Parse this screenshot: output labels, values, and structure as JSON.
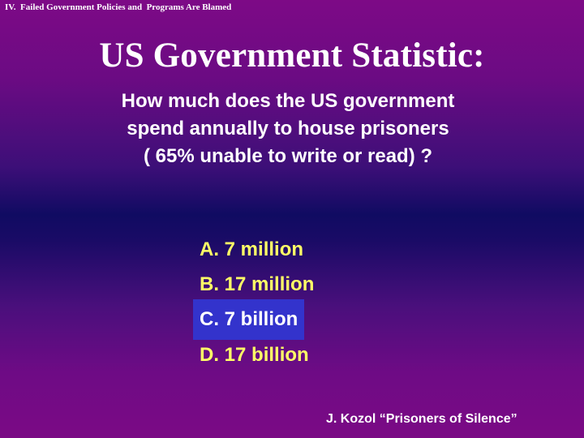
{
  "slide": {
    "section_header": "IV.  Failed Government Policies and  Programs Are Blamed",
    "title": "US Government Statistic:",
    "question_lines": [
      "How much does the US government",
      "spend annually to house prisoners",
      "( 65% unable to write or read) ?"
    ],
    "options": [
      {
        "label": "A. 7 million",
        "selected": false
      },
      {
        "label": "B. 17 million",
        "selected": false
      },
      {
        "label": "C. 7 billion",
        "selected": true
      },
      {
        "label": "D. 17 billion",
        "selected": false
      }
    ],
    "citation": "J. Kozol “Prisoners of Silence”"
  },
  "colors": {
    "option_text": "#ffff66",
    "selected_highlight": "#3333cc",
    "text": "#ffffff"
  }
}
